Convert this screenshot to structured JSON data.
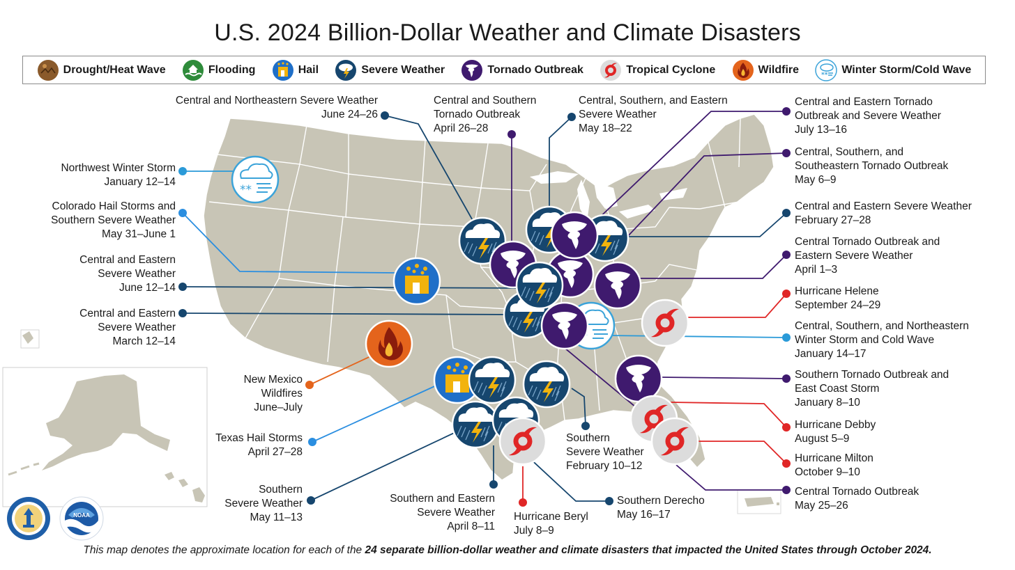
{
  "title": "U.S. 2024 Billion-Dollar Weather and Climate Disasters",
  "legend": [
    {
      "label": "Drought/Heat Wave",
      "icon": "drought-icon",
      "color": "#8a5a2b"
    },
    {
      "label": "Flooding",
      "icon": "flood-icon",
      "color": "#2e8b3a"
    },
    {
      "label": "Hail",
      "icon": "hail-icon",
      "color": "#1f6fc8"
    },
    {
      "label": "Severe Weather",
      "icon": "severe-weather-icon",
      "color": "#16466e"
    },
    {
      "label": "Tornado Outbreak",
      "icon": "tornado-icon",
      "color": "#3f1a6e"
    },
    {
      "label": "Tropical Cyclone",
      "icon": "tropical-cyclone-icon",
      "color": "#e02626"
    },
    {
      "label": "Wildfire",
      "icon": "wildfire-icon",
      "color": "#e4641c"
    },
    {
      "label": "Winter Storm/Cold Wave",
      "icon": "winter-storm-icon",
      "color": "#3ba3d9"
    }
  ],
  "events_left": {
    "nw_winter": {
      "l1": "Northwest Winter Storm",
      "l2": "January 12–14"
    },
    "co_hail": {
      "l1": "Colorado Hail Storms and",
      "l2": "Southern Severe Weather",
      "l3": "May 31–June 1"
    },
    "ce_june": {
      "l1": "Central and Eastern",
      "l2": "Severe Weather",
      "l3": "June 12–14"
    },
    "ce_march": {
      "l1": "Central and Eastern",
      "l2": "Severe Weather",
      "l3": "March 12–14"
    },
    "nm_fire": {
      "l1": "New Mexico",
      "l2": "Wildfires",
      "l3": "June–July"
    },
    "tx_hail": {
      "l1": "Texas Hail Storms",
      "l2": "April 27–28"
    },
    "southern_may": {
      "l1": "Southern",
      "l2": "Severe Weather",
      "l3": "May 11–13"
    }
  },
  "events_top": {
    "cne_june": {
      "l1": "Central and Northeastern Severe Weather",
      "l2": "June 24–26"
    },
    "cs_tornado": {
      "l1": "Central and Southern",
      "l2": "Tornado Outbreak",
      "l3": "April 26–28"
    },
    "cse_may": {
      "l1": "Central, Southern, and Eastern",
      "l2": "Severe Weather",
      "l3": "May 18–22"
    }
  },
  "events_bottom": {
    "se_april": {
      "l1": "Southern and Eastern",
      "l2": "Severe Weather",
      "l3": "April 8–11"
    },
    "beryl": {
      "l1": "Hurricane Beryl",
      "l2": "July 8–9"
    },
    "derecho": {
      "l1": "Southern Derecho",
      "l2": "May 16–17"
    },
    "southern_feb": {
      "l1": "Southern",
      "l2": "Severe Weather",
      "l3": "February 10–12"
    }
  },
  "events_right": {
    "ce_tornado_july": {
      "l1": "Central and Eastern Tornado",
      "l2": "Outbreak and Severe Weather",
      "l3": "July 13–16"
    },
    "css_tornado": {
      "l1": "Central, Southern, and",
      "l2": "Southeastern Tornado Outbreak",
      "l3": "May 6–9"
    },
    "ce_feb": {
      "l1": "Central and Eastern Severe Weather",
      "l2": "February 27–28"
    },
    "ct_april": {
      "l1": "Central Tornado Outbreak and",
      "l2": "Eastern Severe Weather",
      "l3": "April 1–3"
    },
    "helene": {
      "l1": "Hurricane Helene",
      "l2": "September 24–29"
    },
    "csn_winter": {
      "l1": "Central, Southern, and Northeastern",
      "l2": "Winter Storm and Cold Wave",
      "l3": "January 14–17"
    },
    "st_jan": {
      "l1": "Southern Tornado Outbreak and",
      "l2": "East Coast Storm",
      "l3": "January 8–10"
    },
    "debby": {
      "l1": "Hurricane Debby",
      "l2": "August 5–9"
    },
    "milton": {
      "l1": "Hurricane Milton",
      "l2": "October 9–10"
    },
    "ct_may": {
      "l1": "Central Tornado Outbreak",
      "l2": "May 25–26"
    }
  },
  "footnote": {
    "pre": "This map denotes the approximate location for each of the ",
    "bold": "24 separate billion-dollar weather and climate disasters that impacted the United States through October 2024."
  }
}
